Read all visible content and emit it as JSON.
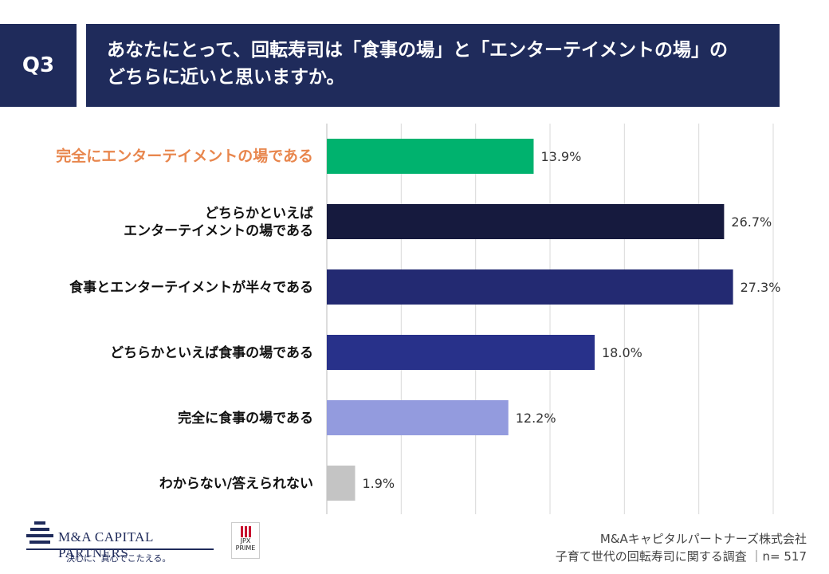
{
  "question": {
    "number": "Q3",
    "line1": "あなたにとって、回転寿司は「食事の場」と「エンターテイメントの場」の",
    "line2": "どちらに近いと思いますか。"
  },
  "chart_data": {
    "type": "bar",
    "orientation": "horizontal",
    "categories": [
      "完全にエンターテイメントの場である",
      "どちらかといえば\nエンターテイメントの場である",
      "食事とエンターテイメントが半々である",
      "どちらかといえば食事の場である",
      "完全に食事の場である",
      "わからない/答えられない"
    ],
    "values": [
      13.9,
      26.7,
      27.3,
      18.0,
      12.2,
      1.9
    ],
    "value_labels": [
      "13.9%",
      "26.7%",
      "27.3%",
      "18.0%",
      "12.2%",
      "1.9%"
    ],
    "colors": [
      "#00b26e",
      "#161a3e",
      "#232a72",
      "#28318a",
      "#939bde",
      "#c4c4c4"
    ],
    "highlight_index": 0,
    "highlight_color": "#e8864d",
    "xlim": [
      0,
      30
    ],
    "grid": true
  },
  "footer": {
    "company": "M&Aキャピタルパートナーズ株式会社",
    "survey": "子育て世代の回転寿司に関する調査 ｜n= 517"
  },
  "logo": {
    "name": "M&A CAPITAL PARTNERS",
    "tagline": "決心に、真心でこたえる。",
    "badge_top": "JPX",
    "badge_bottom": "PRIME"
  }
}
